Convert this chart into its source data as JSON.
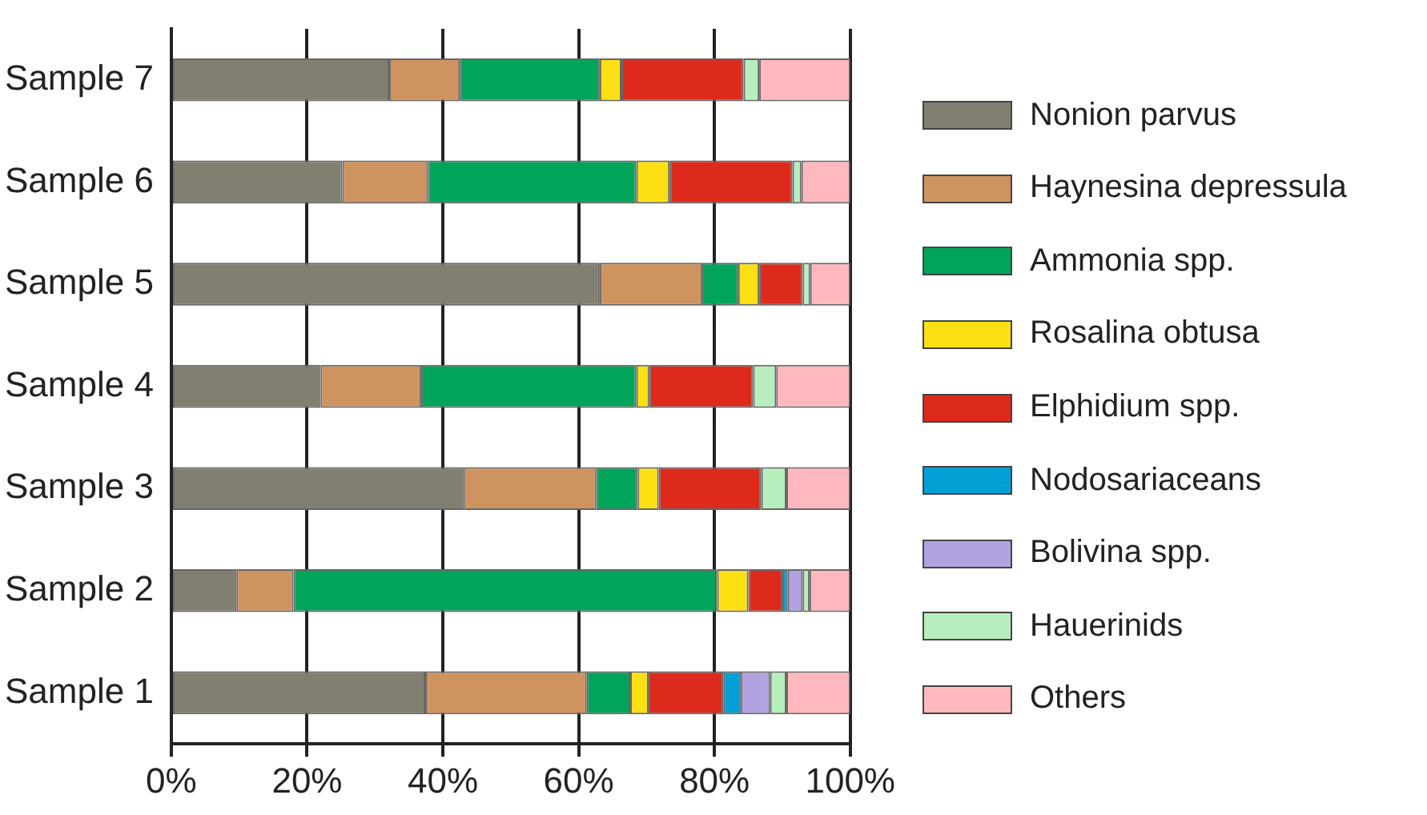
{
  "chart_data": {
    "type": "bar",
    "orientation": "horizontal",
    "stacked": true,
    "categories": [
      "Sample 7",
      "Sample 6",
      "Sample 5",
      "Sample 4",
      "Sample 3",
      "Sample 2",
      "Sample 1"
    ],
    "series": [
      {
        "name": "Nonion parvus",
        "color": "#817f6f",
        "values": [
          32.1,
          25.2,
          63.1,
          22.0,
          43.1,
          9.6,
          37.4
        ]
      },
      {
        "name": "Haynesina depressula",
        "color": "#cf9360",
        "values": [
          10.4,
          12.6,
          15.1,
          14.8,
          19.5,
          8.4,
          23.8
        ]
      },
      {
        "name": "Ammonia spp.",
        "color": "#00a55a",
        "values": [
          20.6,
          30.7,
          5.3,
          31.7,
          6.1,
          62.4,
          6.4
        ]
      },
      {
        "name": "Rosalina obtusa",
        "color": "#fce014",
        "values": [
          3.2,
          4.9,
          3.1,
          1.9,
          3.1,
          4.6,
          2.7
        ]
      },
      {
        "name": "Elphidium spp.",
        "color": "#dd2a1c",
        "values": [
          18.0,
          18.1,
          6.4,
          15.3,
          15.1,
          5.0,
          11.0
        ]
      },
      {
        "name": "Nodosariaceans",
        "color": "#009fd6",
        "values": [
          0,
          0,
          0,
          0,
          0,
          0.8,
          2.6
        ]
      },
      {
        "name": "Bolivina spp.",
        "color": "#b2a2e0",
        "values": [
          0,
          0,
          0,
          0,
          0,
          2.2,
          4.3
        ]
      },
      {
        "name": "Hauerinids",
        "color": "#b6efbd",
        "values": [
          2.3,
          1.3,
          1.1,
          3.4,
          3.7,
          1.0,
          2.4
        ]
      },
      {
        "name": "Others",
        "color": "#ffb8bd",
        "values": [
          13.4,
          7.2,
          5.9,
          10.9,
          9.4,
          6.0,
          9.4
        ]
      }
    ],
    "xlim": [
      0,
      100
    ],
    "xticks": [
      {
        "value": 0,
        "label": "0%"
      },
      {
        "value": 20,
        "label": "20%"
      },
      {
        "value": 40,
        "label": "40%"
      },
      {
        "value": 60,
        "label": "60%"
      },
      {
        "value": 80,
        "label": "80%"
      },
      {
        "value": 100,
        "label": "100%"
      }
    ],
    "grid": "x",
    "legend": "right"
  }
}
